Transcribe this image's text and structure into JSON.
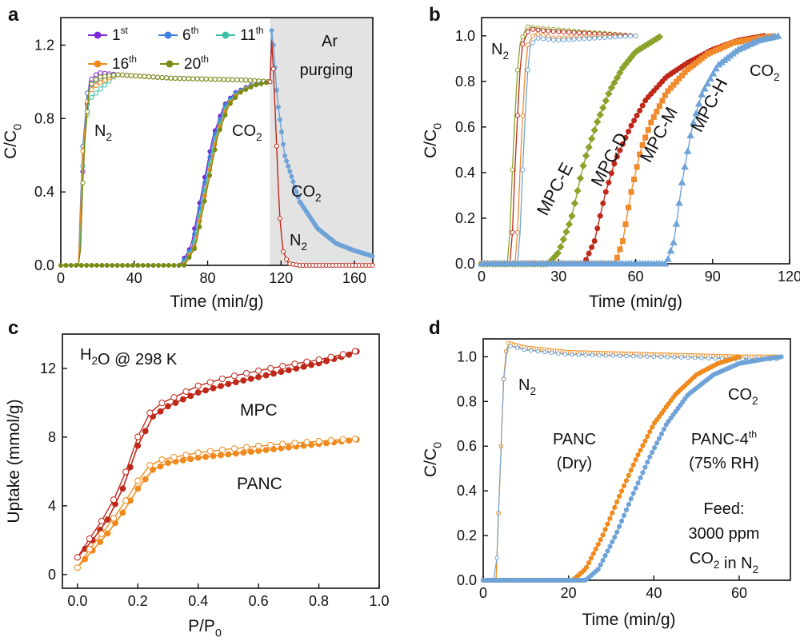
{
  "figure": {
    "colors": {
      "purple": "#7b2bd6",
      "blue": "#3f7fe0",
      "teal": "#3fbfa8",
      "orange": "#f08a1c",
      "olive": "#7a8a12",
      "red": "#c0281a",
      "lightblue": "#6fa3d8",
      "green": "#8aa32a",
      "mpcm": "#f08a2a",
      "shade": "#e3e3e3"
    }
  },
  "chart_data": [
    {
      "panel": "a",
      "type": "line",
      "xlabel": "Time (min/g)",
      "ylabel": "C/C0",
      "xlim": [
        0,
        170
      ],
      "ylim": [
        0,
        1.35
      ],
      "xticks": [
        0,
        40,
        80,
        120,
        160
      ],
      "yticks": [
        0.0,
        0.4,
        0.8,
        1.2
      ],
      "legend": [
        {
          "name": "1",
          "sup": "st",
          "color": "#7b2bd6"
        },
        {
          "name": "6",
          "sup": "th",
          "color": "#3f7fe0"
        },
        {
          "name": "11",
          "sup": "th",
          "color": "#3fbfa8"
        },
        {
          "name": "16",
          "sup": "th",
          "color": "#f08a1c"
        },
        {
          "name": "20",
          "sup": "th",
          "color": "#7a8a12"
        }
      ],
      "shaded_region": {
        "x": [
          114,
          170
        ],
        "label_line1": "Ar",
        "label_line2": "purging"
      },
      "annotations": [
        {
          "text": "N",
          "sub": "2",
          "x": 22,
          "y": 0.8
        },
        {
          "text": "CO",
          "sub": "2",
          "x": 95,
          "y": 0.8
        },
        {
          "text": "CO",
          "sub": "2",
          "x": 140,
          "y": 0.4
        },
        {
          "text": "N",
          "sub": "2",
          "x": 126,
          "y": 0.1
        }
      ],
      "series": [
        {
          "name": "N2 cycle (open markers)",
          "x": [
            0,
            10,
            12,
            15,
            20,
            30,
            60,
            100,
            114
          ],
          "y": [
            0,
            0,
            0.6,
            1.0,
            1.05,
            1.04,
            1.02,
            1.01,
            1.0
          ]
        },
        {
          "name": "CO2 cycle (filled markers)",
          "x": [
            0,
            66,
            72,
            78,
            84,
            90,
            96,
            104,
            114
          ],
          "y": [
            0,
            0,
            0.1,
            0.4,
            0.7,
            0.87,
            0.94,
            0.98,
            1.0
          ]
        },
        {
          "name": "CO2 purge",
          "x": [
            114,
            115,
            118,
            122,
            130,
            140,
            150,
            160,
            170
          ],
          "y": [
            1.0,
            1.31,
            0.9,
            0.6,
            0.35,
            0.2,
            0.12,
            0.08,
            0.05
          ]
        },
        {
          "name": "N2 purge",
          "x": [
            114,
            115,
            117,
            119,
            121,
            124,
            130,
            170
          ],
          "y": [
            1.0,
            1.25,
            0.8,
            0.3,
            0.08,
            0.01,
            0.0,
            0.0
          ]
        }
      ]
    },
    {
      "panel": "b",
      "type": "line",
      "xlabel": "Time (min/g)",
      "ylabel": "C/C0",
      "xlim": [
        0,
        120
      ],
      "ylim": [
        0,
        1.08
      ],
      "xticks": [
        0,
        30,
        60,
        90,
        120
      ],
      "yticks": [
        0.0,
        0.2,
        0.4,
        0.6,
        0.8,
        1.0
      ],
      "annotations": [
        {
          "text": "N",
          "sub": "2",
          "x": 6,
          "y": 0.93
        },
        {
          "text": "CO",
          "sub": "2",
          "x": 105,
          "y": 0.83
        }
      ],
      "series": [
        {
          "name": "MPC-E",
          "label_color": "#8aa32a",
          "x": [
            0,
            26,
            30,
            35,
            40,
            45,
            50,
            55,
            60,
            70
          ],
          "y": [
            0,
            0,
            0.05,
            0.2,
            0.45,
            0.62,
            0.76,
            0.86,
            0.93,
            1.0
          ]
        },
        {
          "name": "MPC-D",
          "label_color": "#c0281a",
          "x": [
            0,
            40,
            44,
            48,
            52,
            58,
            64,
            72,
            80,
            90,
            100,
            110
          ],
          "y": [
            0,
            0,
            0.1,
            0.3,
            0.45,
            0.6,
            0.72,
            0.82,
            0.88,
            0.94,
            0.98,
            1.0
          ]
        },
        {
          "name": "MPC-M",
          "label_color": "#f08a2a",
          "x": [
            0,
            52,
            55,
            58,
            62,
            66,
            72,
            80,
            88,
            98,
            108,
            114
          ],
          "y": [
            0,
            0,
            0.1,
            0.3,
            0.5,
            0.62,
            0.75,
            0.85,
            0.92,
            0.97,
            0.99,
            1.0
          ]
        },
        {
          "name": "MPC-H",
          "label_color": "#6fa3d8",
          "x": [
            0,
            72,
            75,
            78,
            82,
            86,
            92,
            100,
            108,
            116
          ],
          "y": [
            0,
            0,
            0.1,
            0.35,
            0.6,
            0.75,
            0.87,
            0.94,
            0.98,
            1.0
          ]
        }
      ]
    },
    {
      "panel": "c",
      "type": "line",
      "xlabel": "P/P0",
      "ylabel": "Uptake (mmol/g)",
      "xlim": [
        -0.05,
        1.0
      ],
      "ylim": [
        -0.8,
        14
      ],
      "xticks": [
        0.0,
        0.2,
        0.4,
        0.6,
        0.8,
        1.0
      ],
      "yticks": [
        0,
        4,
        8,
        12
      ],
      "inset_label": "H2O @ 298 K",
      "series": [
        {
          "name": "MPC",
          "label_color": "#c0281a",
          "x": [
            0,
            0.05,
            0.1,
            0.15,
            0.2,
            0.25,
            0.3,
            0.4,
            0.5,
            0.6,
            0.7,
            0.8,
            0.9,
            0.94
          ],
          "y": [
            1.0,
            2.0,
            3.2,
            5.0,
            7.5,
            9.2,
            9.8,
            10.6,
            11.1,
            11.5,
            11.9,
            12.3,
            12.8,
            13.1
          ]
        },
        {
          "name": "PANC",
          "label_color": "#f08a1c",
          "x": [
            0,
            0.05,
            0.1,
            0.15,
            0.2,
            0.25,
            0.3,
            0.4,
            0.5,
            0.6,
            0.7,
            0.8,
            0.9,
            0.94
          ],
          "y": [
            0.4,
            1.4,
            2.4,
            3.6,
            5.0,
            6.1,
            6.5,
            6.8,
            7.0,
            7.2,
            7.4,
            7.6,
            7.8,
            7.9
          ]
        }
      ]
    },
    {
      "panel": "d",
      "type": "line",
      "xlabel": "Time (min/g)",
      "ylabel": "C/C0",
      "xlim": [
        0,
        72
      ],
      "ylim": [
        0,
        1.08
      ],
      "xticks": [
        0,
        20,
        40,
        60
      ],
      "yticks": [
        0.0,
        0.2,
        0.4,
        0.6,
        0.8,
        1.0
      ],
      "annotations": [
        {
          "text": "N",
          "sub": "2",
          "x": 9,
          "y": 0.93
        },
        {
          "text": "CO",
          "sub": "2",
          "x": 61,
          "y": 0.91
        }
      ],
      "feed_text": [
        "Feed:",
        "3000 ppm",
        "CO2 in N2"
      ],
      "series": [
        {
          "name": "N2",
          "x": [
            0,
            3,
            4,
            5,
            6,
            10,
            20,
            40,
            60,
            70
          ],
          "y": [
            0,
            0,
            0.5,
            1.0,
            1.06,
            1.04,
            1.02,
            1.01,
            1.0,
            1.0
          ]
        },
        {
          "name": "PANC (Dry)",
          "label_line2": "(Dry)",
          "label_color": "#f08a1c",
          "x": [
            0,
            21,
            24,
            28,
            32,
            36,
            40,
            45,
            50,
            55,
            60
          ],
          "y": [
            0,
            0,
            0.05,
            0.2,
            0.38,
            0.55,
            0.7,
            0.83,
            0.92,
            0.97,
            1.0
          ]
        },
        {
          "name": "PANC-4th (75% RH)",
          "label_line2": "(75% RH)",
          "label_color": "#6fa3d8",
          "x": [
            0,
            24,
            27,
            31,
            35,
            39,
            43,
            48,
            54,
            60,
            66,
            70
          ],
          "y": [
            0,
            0,
            0.05,
            0.2,
            0.38,
            0.55,
            0.7,
            0.83,
            0.92,
            0.97,
            0.99,
            1.0
          ]
        }
      ]
    }
  ]
}
